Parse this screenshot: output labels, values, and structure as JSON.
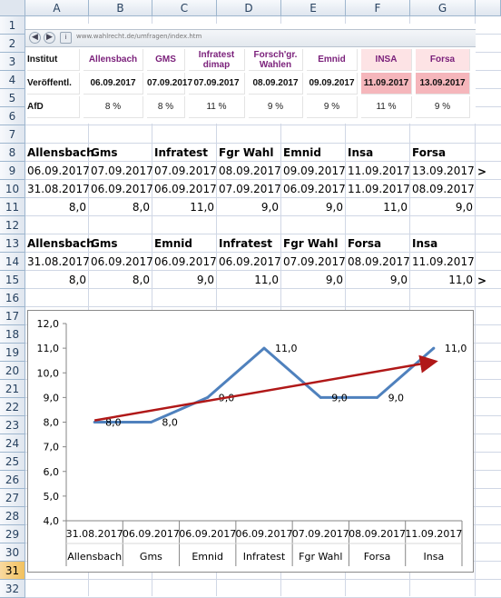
{
  "columns": [
    "A",
    "B",
    "C",
    "D",
    "E",
    "F",
    "G"
  ],
  "rows": [
    "1",
    "2",
    "3",
    "4",
    "5",
    "6",
    "7",
    "8",
    "9",
    "10",
    "11",
    "12",
    "13",
    "14",
    "15",
    "16",
    "17",
    "18",
    "19",
    "20",
    "21",
    "22",
    "23",
    "24",
    "25",
    "26",
    "27",
    "28",
    "29",
    "30",
    "31",
    "32"
  ],
  "selected_row": "31",
  "browser": {
    "url": "www.wahlrecht.de/umfragen/index.htm",
    "table": [
      [
        "Institut",
        "Allensbach",
        "GMS",
        "Infratest dimap",
        "Forsch'gr. Wahlen",
        "Emnid",
        "INSA",
        "Forsa"
      ],
      [
        "Veröffentl.",
        "06.09.2017",
        "07.09.2017",
        "07.09.2017",
        "08.09.2017",
        "09.09.2017",
        "11.09.2017",
        "13.09.2017"
      ],
      [
        "AfD",
        "8 %",
        "8 %",
        "11 %",
        "9 %",
        "9 %",
        "11 %",
        "9 %"
      ]
    ]
  },
  "block1": {
    "headers": [
      "Allensbach",
      "Gms",
      "Infratest",
      "Fgr Wahl",
      "Emnid",
      "Insa",
      "Forsa"
    ],
    "row9": [
      "06.09.2017",
      "07.09.2017",
      "07.09.2017",
      "08.09.2017",
      "09.09.2017",
      "11.09.2017",
      "13.09.2017"
    ],
    "row9_marker": ">",
    "row10": [
      "31.08.2017",
      "06.09.2017",
      "06.09.2017",
      "07.09.2017",
      "06.09.2017",
      "11.09.2017",
      "08.09.2017"
    ],
    "row11": [
      "8,0",
      "8,0",
      "11,0",
      "9,0",
      "9,0",
      "11,0",
      "9,0"
    ]
  },
  "block2": {
    "headers": [
      "Allensbach",
      "Gms",
      "Emnid",
      "Infratest",
      "Fgr Wahl",
      "Forsa",
      "Insa"
    ],
    "row14": [
      "31.08.2017",
      "06.09.2017",
      "06.09.2017",
      "06.09.2017",
      "07.09.2017",
      "08.09.2017",
      "11.09.2017"
    ],
    "row15": [
      "8,0",
      "8,0",
      "9,0",
      "11,0",
      "9,0",
      "9,0",
      "11,0"
    ],
    "row15_marker": ">"
  },
  "chart_data": {
    "type": "line",
    "categories": [
      "Allensbach",
      "Gms",
      "Emnid",
      "Infratest",
      "Fgr Wahl",
      "Forsa",
      "Insa"
    ],
    "dates": [
      "31.08.2017",
      "06.09.2017",
      "06.09.2017",
      "06.09.2017",
      "07.09.2017",
      "08.09.2017",
      "11.09.2017"
    ],
    "values": [
      8.0,
      8.0,
      9.0,
      11.0,
      9.0,
      9.0,
      11.0
    ],
    "data_labels": [
      "8,0",
      "8,0",
      "9,0",
      "11,0",
      "9,0",
      "9,0",
      "11,0"
    ],
    "y_ticks": [
      "4,0",
      "5,0",
      "6,0",
      "7,0",
      "8,0",
      "9,0",
      "10,0",
      "11,0",
      "12,0"
    ],
    "ylim": [
      4,
      12
    ],
    "trendline": {
      "start": 8.07,
      "end": 10.45
    },
    "grid": false,
    "colors": {
      "series": "#4f81bd",
      "trend": "#b01818"
    }
  }
}
